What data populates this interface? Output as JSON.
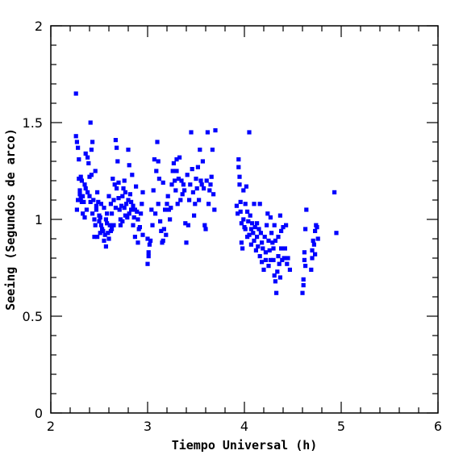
{
  "chart_data": {
    "type": "scatter",
    "xlabel": "Tiempo Universal (h)",
    "ylabel": "Seeing (Segundos de arco)",
    "xlim": [
      2,
      6
    ],
    "ylim": [
      0,
      2
    ],
    "x_ticks": [
      "2",
      "3",
      "4",
      "5",
      "6"
    ],
    "y_ticks": [
      "0",
      "0.5",
      "1",
      "1.5",
      "2"
    ],
    "grid": false,
    "marker_color": "#0000ff",
    "series": [
      {
        "points": [
          [
            2.26,
            1.65
          ],
          [
            2.26,
            1.43
          ],
          [
            2.27,
            1.4
          ],
          [
            2.28,
            1.37
          ],
          [
            2.27,
            1.05
          ],
          [
            2.28,
            1.1
          ],
          [
            2.29,
            1.31
          ],
          [
            2.29,
            1.21
          ],
          [
            2.3,
            1.15
          ],
          [
            2.3,
            1.13
          ],
          [
            2.31,
            1.22
          ],
          [
            2.31,
            1.11
          ],
          [
            2.32,
            1.09
          ],
          [
            2.32,
            1.2
          ],
          [
            2.33,
            1.03
          ],
          [
            2.33,
            1.12
          ],
          [
            2.34,
            1.09
          ],
          [
            2.35,
            1.01
          ],
          [
            2.35,
            1.18
          ],
          [
            2.36,
            1.34
          ],
          [
            2.36,
            1.16
          ],
          [
            2.37,
            1.05
          ],
          [
            2.38,
            1.14
          ],
          [
            2.38,
            1.32
          ],
          [
            2.39,
            1.29
          ],
          [
            2.4,
            1.22
          ],
          [
            2.4,
            1.12
          ],
          [
            2.41,
            1.5
          ],
          [
            2.41,
            1.09
          ],
          [
            2.42,
            1.36
          ],
          [
            2.42,
            1.23
          ],
          [
            2.43,
            1.4
          ],
          [
            2.43,
            1.03
          ],
          [
            2.44,
            1.1
          ],
          [
            2.45,
            1.0
          ],
          [
            2.45,
            0.91
          ],
          [
            2.46,
            1.25
          ],
          [
            2.46,
            0.97
          ],
          [
            2.47,
            1.07
          ],
          [
            2.47,
            1.05
          ],
          [
            2.48,
            1.14
          ],
          [
            2.48,
            0.91
          ],
          [
            2.49,
            1.09
          ],
          [
            2.5,
            1.02
          ],
          [
            2.5,
            0.99
          ],
          [
            2.51,
            1.01
          ],
          [
            2.51,
            0.93
          ],
          [
            2.52,
            1.08
          ],
          [
            2.52,
            0.97
          ],
          [
            2.53,
            0.95
          ],
          [
            2.54,
            0.94
          ],
          [
            2.55,
            1.06
          ],
          [
            2.55,
            0.89
          ],
          [
            2.56,
            0.92
          ],
          [
            2.57,
            0.86
          ],
          [
            2.57,
            1.0
          ],
          [
            2.58,
            0.98
          ],
          [
            2.58,
            1.03
          ],
          [
            2.59,
            0.93
          ],
          [
            2.6,
            0.9
          ],
          [
            2.6,
            1.12
          ],
          [
            2.61,
            0.97
          ],
          [
            2.62,
            0.94
          ],
          [
            2.62,
            1.08
          ],
          [
            2.63,
            1.03
          ],
          [
            2.63,
            0.95
          ],
          [
            2.64,
            1.21
          ],
          [
            2.65,
            1.1
          ],
          [
            2.65,
            0.97
          ],
          [
            2.66,
            1.18
          ],
          [
            2.67,
            1.41
          ],
          [
            2.67,
            1.06
          ],
          [
            2.68,
            1.37
          ],
          [
            2.68,
            1.16
          ],
          [
            2.69,
            1.3
          ],
          [
            2.7,
            1.11
          ],
          [
            2.7,
            1.19
          ],
          [
            2.71,
            1.05
          ],
          [
            2.72,
            1.0
          ],
          [
            2.72,
            0.97
          ],
          [
            2.73,
            1.07
          ],
          [
            2.74,
            1.12
          ],
          [
            2.74,
            0.99
          ],
          [
            2.75,
            1.16
          ],
          [
            2.76,
            1.06
          ],
          [
            2.76,
            1.2
          ],
          [
            2.77,
            1.02
          ],
          [
            2.77,
            1.14
          ],
          [
            2.78,
            1.08
          ],
          [
            2.79,
            1.01
          ],
          [
            2.8,
            1.1
          ],
          [
            2.8,
            1.36
          ],
          [
            2.81,
            1.28
          ],
          [
            2.81,
            1.03
          ],
          [
            2.82,
            1.13
          ],
          [
            2.83,
            1.05
          ],
          [
            2.83,
            1.09
          ],
          [
            2.84,
            1.23
          ],
          [
            2.85,
            1.07
          ],
          [
            2.85,
            0.97
          ],
          [
            2.86,
            1.01
          ],
          [
            2.87,
            1.05
          ],
          [
            2.87,
            0.91
          ],
          [
            2.88,
            1.17
          ],
          [
            2.89,
            1.04
          ],
          [
            2.9,
            0.88
          ],
          [
            2.9,
            1.0
          ],
          [
            2.91,
            0.95
          ],
          [
            2.92,
            0.96
          ],
          [
            2.93,
            1.03
          ],
          [
            2.94,
            1.08
          ],
          [
            2.95,
            0.92
          ],
          [
            2.95,
            1.14
          ],
          [
            3.0,
            0.77
          ],
          [
            3.0,
            0.9
          ],
          [
            3.01,
            0.81
          ],
          [
            3.01,
            0.83
          ],
          [
            3.02,
            0.87
          ],
          [
            3.03,
            0.89
          ],
          [
            3.04,
            1.05
          ],
          [
            3.05,
            0.97
          ],
          [
            3.06,
            1.15
          ],
          [
            3.07,
            1.31
          ],
          [
            3.08,
            1.03
          ],
          [
            3.09,
            1.25
          ],
          [
            3.1,
            1.4
          ],
          [
            3.11,
            1.08
          ],
          [
            3.11,
            1.3
          ],
          [
            3.12,
            1.21
          ],
          [
            3.13,
            0.99
          ],
          [
            3.14,
            0.94
          ],
          [
            3.15,
            0.88
          ],
          [
            3.16,
            1.19
          ],
          [
            3.16,
            0.89
          ],
          [
            3.17,
            0.95
          ],
          [
            3.18,
            1.05
          ],
          [
            3.19,
            0.92
          ],
          [
            3.2,
            1.08
          ],
          [
            3.21,
            1.12
          ],
          [
            3.22,
            1.05
          ],
          [
            3.23,
            1.0
          ],
          [
            3.24,
            1.06
          ],
          [
            3.25,
            1.18
          ],
          [
            3.26,
            1.25
          ],
          [
            3.27,
            1.29
          ],
          [
            3.28,
            1.2
          ],
          [
            3.29,
            1.15
          ],
          [
            3.3,
            1.31
          ],
          [
            3.3,
            1.25
          ],
          [
            3.31,
            1.08
          ],
          [
            3.32,
            1.21
          ],
          [
            3.33,
            1.32
          ],
          [
            3.34,
            1.1
          ],
          [
            3.35,
            1.2
          ],
          [
            3.36,
            1.13
          ],
          [
            3.37,
            1.18
          ],
          [
            3.38,
            1.15
          ],
          [
            3.39,
            0.98
          ],
          [
            3.4,
            0.88
          ],
          [
            3.41,
            1.23
          ],
          [
            3.42,
            0.97
          ],
          [
            3.43,
            1.1
          ],
          [
            3.44,
            1.18
          ],
          [
            3.45,
            1.45
          ],
          [
            3.46,
            1.26
          ],
          [
            3.47,
            1.14
          ],
          [
            3.48,
            1.02
          ],
          [
            3.49,
            1.08
          ],
          [
            3.5,
            1.21
          ],
          [
            3.51,
            1.16
          ],
          [
            3.52,
            1.27
          ],
          [
            3.53,
            1.1
          ],
          [
            3.54,
            1.36
          ],
          [
            3.55,
            1.2
          ],
          [
            3.56,
            1.18
          ],
          [
            3.57,
            1.3
          ],
          [
            3.58,
            1.16
          ],
          [
            3.59,
            0.97
          ],
          [
            3.6,
            0.95
          ],
          [
            3.61,
            1.2
          ],
          [
            3.62,
            1.45
          ],
          [
            3.63,
            1.08
          ],
          [
            3.64,
            1.15
          ],
          [
            3.65,
            1.18
          ],
          [
            3.66,
            1.22
          ],
          [
            3.67,
            1.36
          ],
          [
            3.68,
            1.13
          ],
          [
            3.69,
            1.05
          ],
          [
            3.7,
            1.46
          ],
          [
            3.92,
            1.07
          ],
          [
            3.93,
            1.03
          ],
          [
            3.94,
            1.31
          ],
          [
            3.94,
            1.27
          ],
          [
            3.95,
            1.22
          ],
          [
            3.95,
            1.18
          ],
          [
            3.96,
            1.09
          ],
          [
            3.96,
            1.04
          ],
          [
            3.97,
            0.98
          ],
          [
            3.97,
            0.88
          ],
          [
            3.98,
            0.85
          ],
          [
            3.99,
            1.0
          ],
          [
            3.99,
            1.15
          ],
          [
            4.0,
            0.96
          ],
          [
            4.01,
            1.08
          ],
          [
            4.01,
            0.95
          ],
          [
            4.02,
            1.17
          ],
          [
            4.03,
            1.04
          ],
          [
            4.03,
            0.91
          ],
          [
            4.04,
            0.99
          ],
          [
            4.05,
            1.45
          ],
          [
            4.05,
            0.92
          ],
          [
            4.06,
            1.02
          ],
          [
            4.07,
            0.95
          ],
          [
            4.07,
            0.87
          ],
          [
            4.08,
            0.98
          ],
          [
            4.09,
            0.93
          ],
          [
            4.1,
            0.89
          ],
          [
            4.1,
            1.08
          ],
          [
            4.11,
            0.96
          ],
          [
            4.12,
            0.84
          ],
          [
            4.13,
            0.91
          ],
          [
            4.13,
            0.98
          ],
          [
            4.14,
            0.86
          ],
          [
            4.15,
            0.95
          ],
          [
            4.16,
            0.81
          ],
          [
            4.16,
            1.08
          ],
          [
            4.17,
            0.93
          ],
          [
            4.18,
            0.88
          ],
          [
            4.18,
            0.78
          ],
          [
            4.19,
            0.85
          ],
          [
            4.2,
            0.74
          ],
          [
            4.21,
            0.91
          ],
          [
            4.22,
            0.79
          ],
          [
            4.22,
            0.83
          ],
          [
            4.23,
            0.97
          ],
          [
            4.24,
            1.03
          ],
          [
            4.25,
            0.89
          ],
          [
            4.25,
            0.76
          ],
          [
            4.26,
            0.84
          ],
          [
            4.27,
            0.79
          ],
          [
            4.27,
            1.01
          ],
          [
            4.28,
            0.93
          ],
          [
            4.29,
            0.88
          ],
          [
            4.3,
            0.85
          ],
          [
            4.3,
            0.79
          ],
          [
            4.31,
            0.97
          ],
          [
            4.31,
            0.71
          ],
          [
            4.32,
            0.89
          ],
          [
            4.32,
            0.68
          ],
          [
            4.33,
            0.62
          ],
          [
            4.34,
            0.73
          ],
          [
            4.35,
            0.81
          ],
          [
            4.35,
            0.91
          ],
          [
            4.36,
            0.77
          ],
          [
            4.37,
            0.7
          ],
          [
            4.37,
            1.02
          ],
          [
            4.38,
            0.85
          ],
          [
            4.38,
            0.94
          ],
          [
            4.39,
            0.79
          ],
          [
            4.4,
            0.96
          ],
          [
            4.41,
            0.8
          ],
          [
            4.42,
            0.85
          ],
          [
            4.43,
            0.97
          ],
          [
            4.44,
            0.77
          ],
          [
            4.45,
            0.8
          ],
          [
            4.47,
            0.74
          ],
          [
            4.6,
            0.62
          ],
          [
            4.61,
            0.66
          ],
          [
            4.61,
            0.69
          ],
          [
            4.62,
            0.79
          ],
          [
            4.62,
            0.83
          ],
          [
            4.63,
            0.76
          ],
          [
            4.63,
            0.95
          ],
          [
            4.64,
            1.05
          ],
          [
            4.69,
            0.74
          ],
          [
            4.7,
            0.8
          ],
          [
            4.7,
            0.84
          ],
          [
            4.71,
            0.89
          ],
          [
            4.72,
            0.87
          ],
          [
            4.73,
            0.82
          ],
          [
            4.73,
            0.94
          ],
          [
            4.74,
            0.97
          ],
          [
            4.75,
            0.96
          ],
          [
            4.76,
            0.9
          ],
          [
            4.93,
            1.14
          ],
          [
            4.95,
            0.93
          ]
        ]
      }
    ]
  }
}
